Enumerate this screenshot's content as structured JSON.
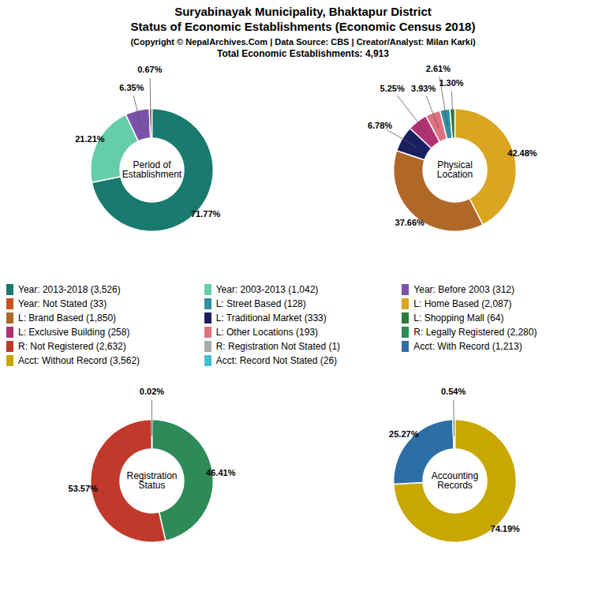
{
  "title": "Suryabinayak Municipality, Bhaktapur District\nStatus of Economic Establishments (Economic Census 2018)",
  "subtitle": "(Copyright © NepalArchives.Com | Data Source: CBS | Creator/Analyst: Milan Karki)",
  "annotations": [
    "Total Economic Establishments: 4,913"
  ],
  "chart_data": [
    {
      "type": "pie",
      "title": "Period of\nEstablishment",
      "values": [
        71.77,
        21.21,
        6.35,
        0.67
      ],
      "value_labels": [
        "71.77%",
        "21.21%",
        "6.35%",
        "0.67%"
      ],
      "colors": [
        "#1a7a6e",
        "#66cdaa",
        "#7b52ab",
        "#c85020"
      ],
      "data_labels": true
    },
    {
      "type": "pie",
      "title": "Physical\nLocation",
      "values": [
        42.48,
        37.66,
        6.78,
        5.25,
        3.93,
        2.61,
        1.3
      ],
      "value_labels": [
        "42.48%",
        "37.66%",
        "6.78%",
        "5.25%",
        "3.93%",
        "2.61%",
        "1.30%"
      ],
      "colors": [
        "#daa520",
        "#b06828",
        "#192060",
        "#b03070",
        "#e07080",
        "#3090a0",
        "#2e7a3a"
      ],
      "data_labels": true
    },
    {
      "type": "pie",
      "title": "Registration\nStatus",
      "values": [
        46.41,
        53.57,
        0.02
      ],
      "value_labels": [
        "46.41%",
        "53.57%",
        "0.02%"
      ],
      "colors": [
        "#2e8b57",
        "#c0392b",
        "#aaaaaa"
      ],
      "data_labels": true
    },
    {
      "type": "pie",
      "title": "Accounting\nRecords",
      "values": [
        74.19,
        25.27,
        0.54
      ],
      "value_labels": [
        "74.19%",
        "25.27%",
        "0.54%"
      ],
      "colors": [
        "#c8a800",
        "#2e6ea6",
        "#40c0d0"
      ],
      "data_labels": true
    },
    {
      "type": "legend",
      "categories": [
        "Year: 2013-2018 (3,526)",
        "Year: 2003-2013 (1,042)",
        "Year: Before 2003 (312)",
        "Year: Not Stated (33)",
        "L: Street Based (128)",
        "L: Home Based (2,087)",
        "L: Brand Based (1,850)",
        "L: Traditional Market (333)",
        "L: Shopping Mall (64)",
        "L: Exclusive Building (258)",
        "L: Other Locations (193)",
        "R: Legally Registered (2,280)",
        "R: Not Registered (2,632)",
        "R: Registration Not Stated (1)",
        "Acct: With Record (1,213)",
        "Acct: Without Record (3,562)",
        "Acct: Record Not Stated (26)"
      ],
      "colors": [
        "#1a7a6e",
        "#66cdaa",
        "#7b52ab",
        "#c85020",
        "#3090a0",
        "#daa520",
        "#b06828",
        "#192060",
        "#2e7a3a",
        "#b03070",
        "#e07080",
        "#2e8b57",
        "#c0392b",
        "#aaaaaa",
        "#2e6ea6",
        "#c8a800",
        "#40c0d0"
      ]
    }
  ]
}
